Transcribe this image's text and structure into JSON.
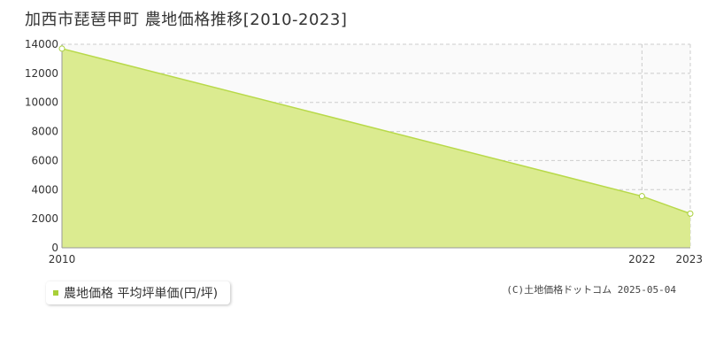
{
  "title": "加西市琵琶甲町 農地価格推移[2010-2023]",
  "legend": {
    "label": "農地価格 平均坪単価(円/坪)"
  },
  "copyright": "(C)土地価格ドットコム 2025-05-04",
  "colors": {
    "fill": "#dbeb90",
    "line": "#b8d94a",
    "marker": "#a8cf38",
    "grid": "#cccccc",
    "plot_bg": "#fafafa"
  },
  "chart_data": {
    "type": "area",
    "x": [
      2010,
      2022,
      2023
    ],
    "series": [
      {
        "name": "農地価格 平均坪単価(円/坪)",
        "values": [
          13700,
          3550,
          2350
        ]
      }
    ],
    "xlim": [
      2010,
      2023
    ],
    "ylim": [
      0,
      14000
    ],
    "yticks": [
      0,
      2000,
      4000,
      6000,
      8000,
      10000,
      12000,
      14000
    ],
    "xticks": [
      2010,
      2022,
      2023
    ],
    "grid": true,
    "legend_position": "bottom-left"
  }
}
